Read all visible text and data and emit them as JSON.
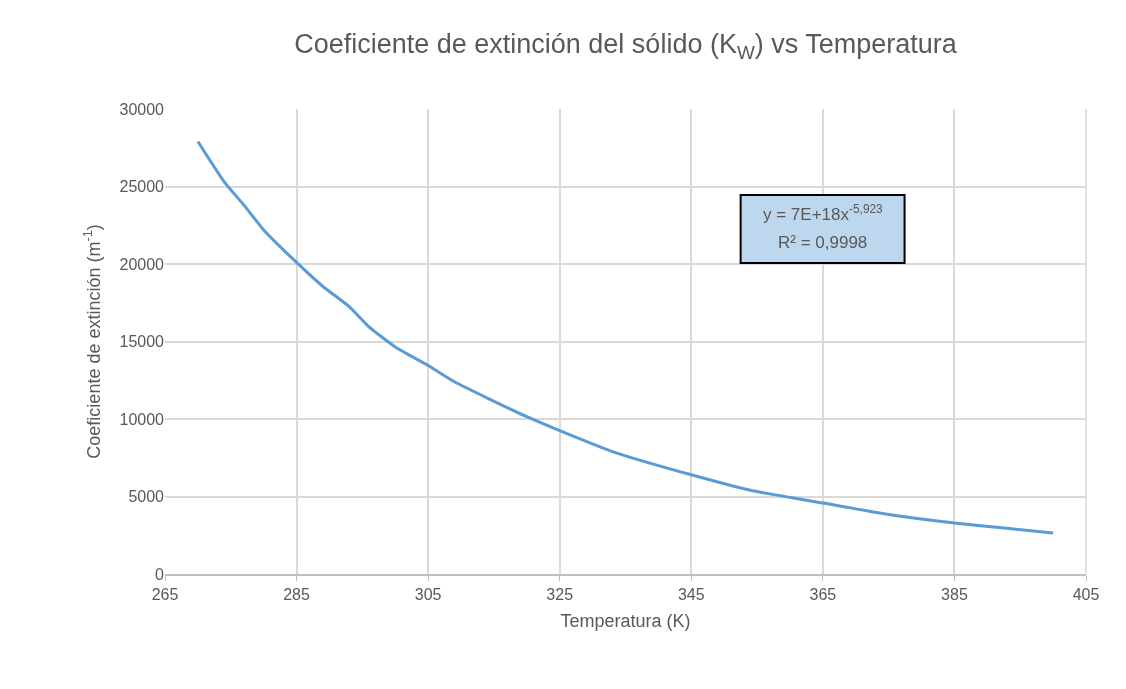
{
  "chart_data": {
    "type": "line",
    "title": "Coeficiente de extinción del sólido (K$_{W}$) vs Temperatura",
    "xlabel": "Temperatura (K)",
    "ylabel": "Coeficiente de extinción (m$^{-1}$)",
    "x": [
      270,
      274,
      277,
      280,
      285,
      289,
      293,
      296,
      300,
      305,
      309,
      314,
      320,
      325,
      333,
      345,
      354,
      365,
      375,
      385,
      393,
      400
    ],
    "series": [
      {
        "color": "#5b9bd5",
        "values": [
          27900,
          25300,
          23800,
          22200,
          20100,
          18550,
          17250,
          15950,
          14650,
          13450,
          12400,
          11350,
          10150,
          9250,
          7900,
          6400,
          5400,
          4580,
          3840,
          3290,
          2950,
          2650
        ]
      }
    ],
    "xlim": [
      265,
      405
    ],
    "xticks": [
      265,
      285,
      305,
      325,
      345,
      365,
      385,
      405
    ],
    "ylim": [
      0,
      30000
    ],
    "yticks": [
      0,
      5000,
      10000,
      15000,
      20000,
      25000,
      30000
    ],
    "grid": true,
    "marker": "none",
    "line_style": "solid",
    "annotations": [
      "y = 7E+18x$^{-5,923}$",
      "R² = 0,9998"
    ]
  }
}
